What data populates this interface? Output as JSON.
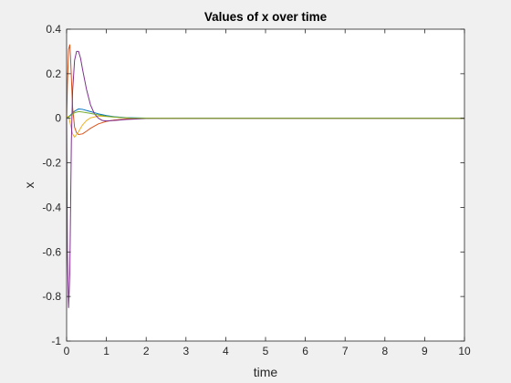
{
  "chart_data": {
    "type": "line",
    "title": "Values of x over time",
    "xlabel": "time",
    "ylabel": "x",
    "xlim": [
      0,
      10
    ],
    "ylim": [
      -1,
      0.4
    ],
    "x_ticks": [
      "0",
      "1",
      "2",
      "3",
      "4",
      "5",
      "6",
      "7",
      "8",
      "9",
      "10"
    ],
    "y_ticks": [
      "0.4",
      "0.2",
      "0",
      "-0.2",
      "-0.4",
      "-0.6",
      "-0.8",
      "-1"
    ],
    "grid": false,
    "legend": "none",
    "series": [
      {
        "color": "#0072BD",
        "x": [
          0,
          0.05,
          0.1,
          0.2,
          0.3,
          0.4,
          0.6,
          0.8,
          1.0,
          1.2,
          1.5,
          2.0,
          2.5,
          3.0,
          10
        ],
        "y": [
          0,
          0.006,
          0.015,
          0.032,
          0.042,
          0.04,
          0.03,
          0.02,
          0.012,
          0.007,
          0.003,
          0.001,
          0.0,
          0.0,
          0.0
        ]
      },
      {
        "color": "#D95319",
        "x": [
          0,
          0.02,
          0.05,
          0.08,
          0.1,
          0.15,
          0.2,
          0.25,
          0.3,
          0.4,
          0.5,
          0.6,
          0.8,
          1.0,
          1.2,
          1.5,
          2.0,
          2.5,
          10
        ],
        "y": [
          0,
          0.15,
          0.31,
          0.33,
          0.27,
          0.05,
          -0.04,
          -0.065,
          -0.073,
          -0.07,
          -0.058,
          -0.045,
          -0.025,
          -0.014,
          -0.008,
          -0.003,
          0.0,
          0.0,
          0.0
        ]
      },
      {
        "color": "#EDB120",
        "x": [
          0,
          0.05,
          0.1,
          0.15,
          0.2,
          0.3,
          0.4,
          0.5,
          0.6,
          0.8,
          1.0,
          1.3,
          1.6,
          2.0,
          10
        ],
        "y": [
          0,
          0.01,
          -0.03,
          -0.07,
          -0.085,
          -0.06,
          -0.03,
          -0.01,
          0.002,
          0.01,
          0.008,
          0.004,
          0.001,
          0.0,
          0.0
        ]
      },
      {
        "color": "#7E2F8E",
        "x": [
          0,
          0.02,
          0.05,
          0.08,
          0.1,
          0.12,
          0.15,
          0.2,
          0.25,
          0.3,
          0.35,
          0.4,
          0.5,
          0.6,
          0.7,
          0.8,
          0.9,
          1.0,
          1.2,
          1.5,
          2.0,
          3.0,
          10
        ],
        "y": [
          0,
          -0.6,
          -0.85,
          -0.7,
          -0.4,
          -0.1,
          0.12,
          0.26,
          0.3,
          0.3,
          0.27,
          0.22,
          0.13,
          0.06,
          0.02,
          0.0,
          -0.01,
          -0.012,
          -0.01,
          -0.005,
          -0.001,
          0.0,
          0.0
        ]
      },
      {
        "color": "#77AC30",
        "x": [
          0,
          0.1,
          0.2,
          0.3,
          0.4,
          0.6,
          0.8,
          1.0,
          1.3,
          1.6,
          2.0,
          10
        ],
        "y": [
          0,
          0.012,
          0.025,
          0.03,
          0.028,
          0.022,
          0.015,
          0.009,
          0.004,
          0.001,
          0.0,
          0.0
        ]
      }
    ]
  }
}
